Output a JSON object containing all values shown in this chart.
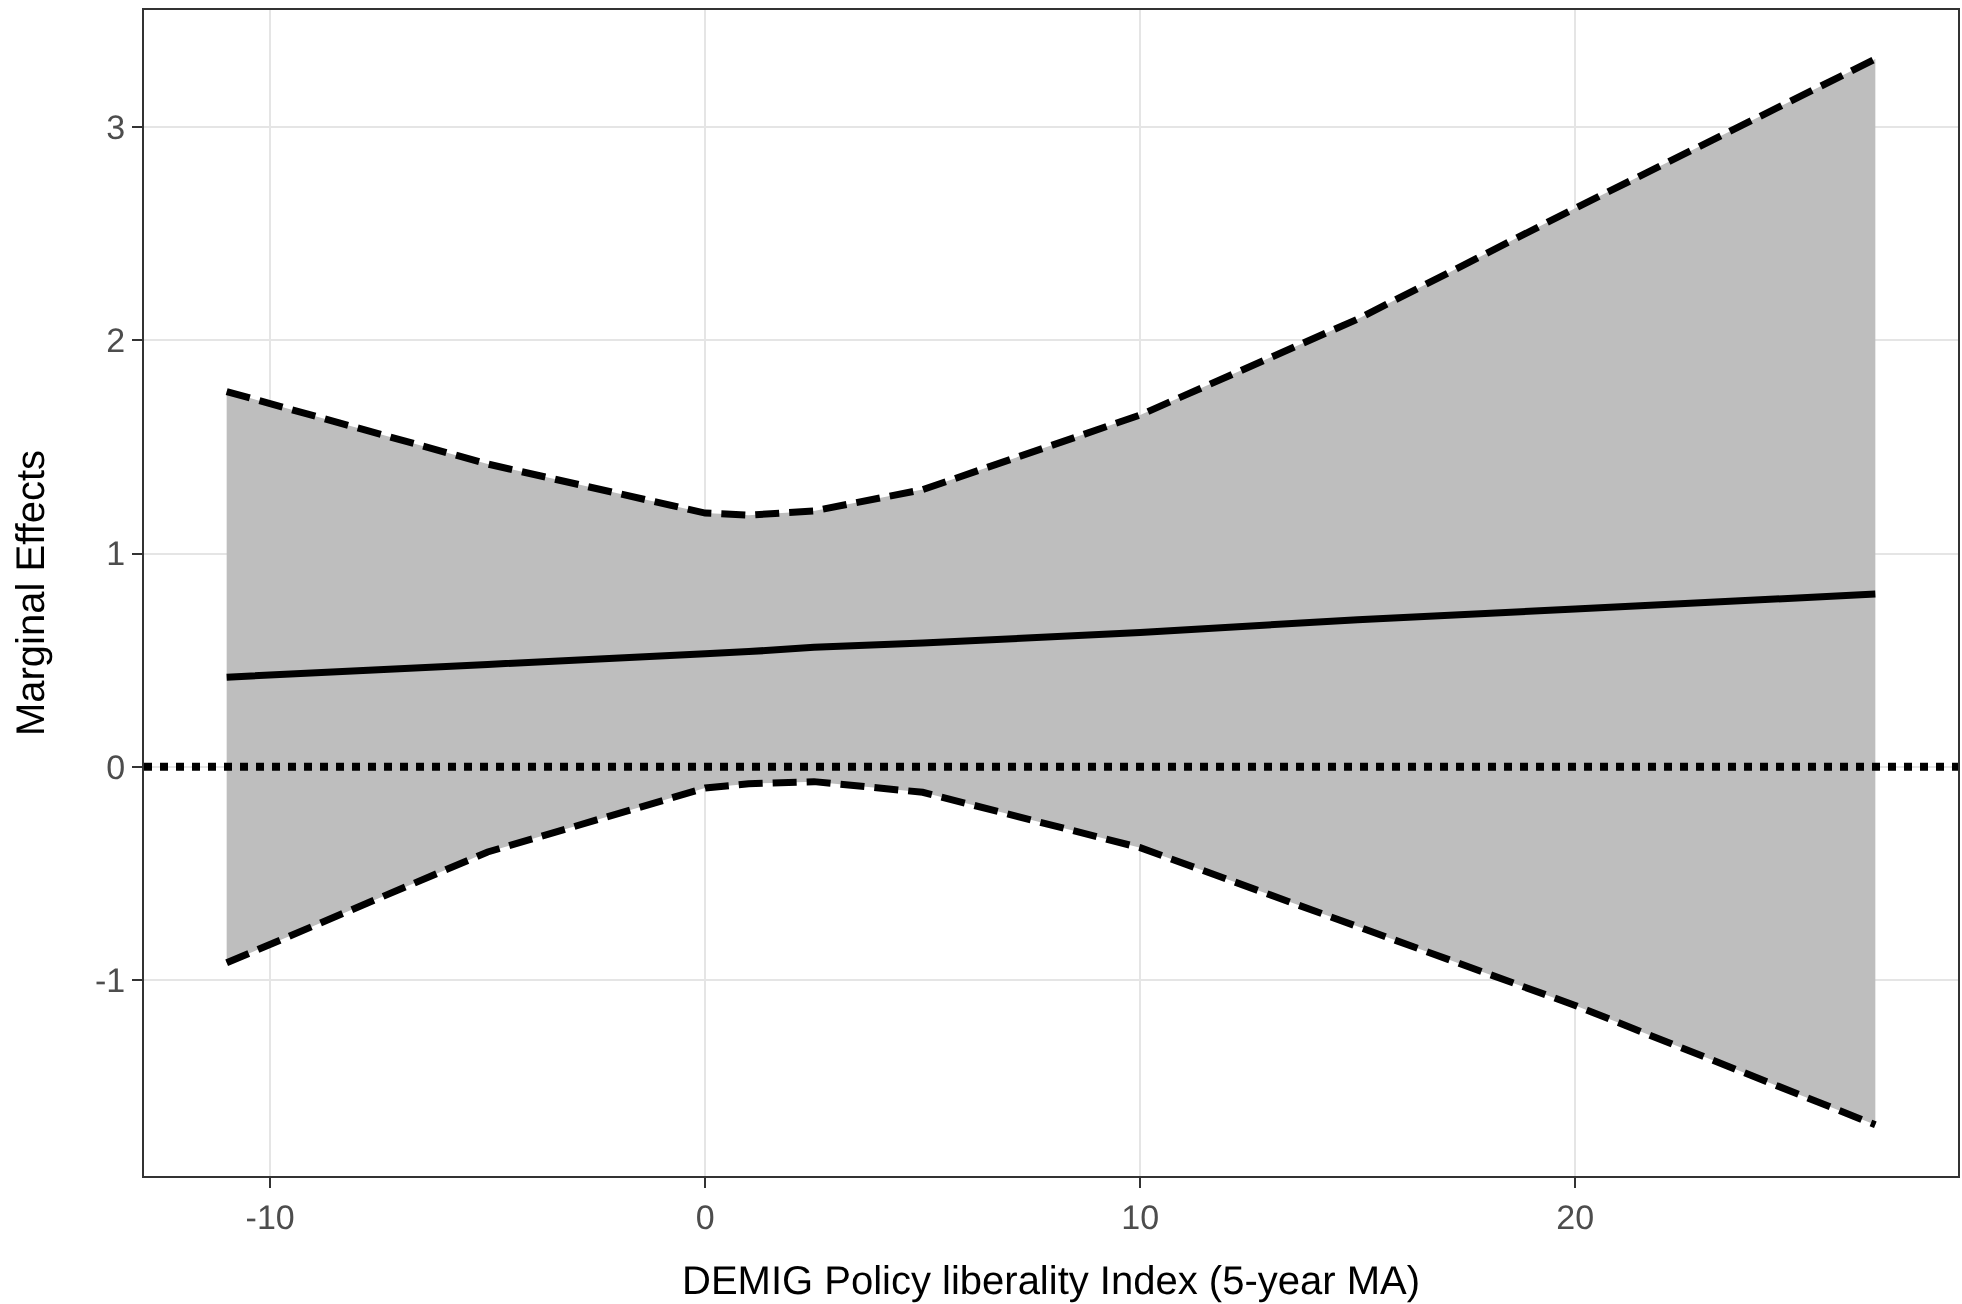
{
  "chart_data": {
    "type": "line",
    "xlabel": "DEMIG Policy liberality Index (5-year MA)",
    "ylabel": "Marginal Effects",
    "xlim": [
      -12.9,
      28.8
    ],
    "xticks": [
      -10,
      0,
      10,
      20
    ],
    "ylim": [
      -1.92,
      3.55
    ],
    "yticks": [
      -1,
      0,
      1,
      2,
      3
    ],
    "grid": true,
    "line_style": "solid",
    "marker": "none",
    "series": [
      {
        "color": "#000000",
        "x": [
          -11,
          -5,
          0,
          1,
          2.5,
          5,
          10,
          15,
          20,
          26.9
        ],
        "values": [
          0.42,
          0.48,
          0.53,
          0.54,
          0.56,
          0.58,
          0.63,
          0.69,
          0.74,
          0.81
        ],
        "lower": [
          -0.92,
          -0.4,
          -0.1,
          -0.08,
          -0.07,
          -0.12,
          -0.38,
          -0.75,
          -1.12,
          -1.68
        ],
        "upper": [
          1.76,
          1.42,
          1.19,
          1.18,
          1.2,
          1.3,
          1.65,
          2.1,
          2.62,
          3.32
        ]
      },
      {
        "color": "#000000",
        "line_style": "dashed",
        "x": [
          -11,
          -5,
          0,
          1,
          2.5,
          5,
          10,
          15,
          20,
          26.9
        ],
        "values": [
          1.76,
          1.42,
          1.19,
          1.18,
          1.2,
          1.3,
          1.65,
          2.1,
          2.62,
          3.32
        ]
      },
      {
        "color": "#000000",
        "line_style": "dashed",
        "x": [
          -11,
          -5,
          0,
          1,
          2.5,
          5,
          10,
          15,
          20,
          26.9
        ],
        "values": [
          -0.92,
          -0.4,
          -0.1,
          -0.08,
          -0.07,
          -0.12,
          -0.38,
          -0.75,
          -1.12,
          -1.68
        ]
      }
    ],
    "ref_lines": [
      {
        "axis": "y",
        "value": 0,
        "line_style": "dotted",
        "color": "#000000"
      }
    ]
  }
}
